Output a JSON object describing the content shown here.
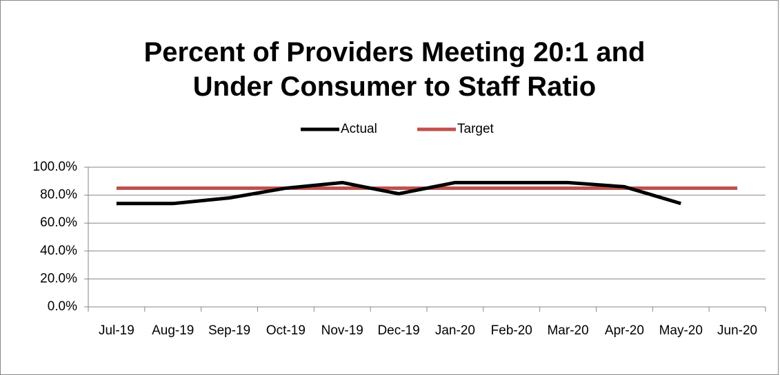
{
  "chart_data": {
    "type": "line",
    "title": "Percent of Providers Meeting 20:1 and Under Consumer to Staff Ratio",
    "categories": [
      "Jul-19",
      "Aug-19",
      "Sep-19",
      "Oct-19",
      "Nov-19",
      "Dec-19",
      "Jan-20",
      "Feb-20",
      "Mar-20",
      "Apr-20",
      "May-20",
      "Jun-20"
    ],
    "series": [
      {
        "name": "Actual",
        "color": "#000000",
        "values": [
          74,
          74,
          78,
          85,
          89,
          81,
          89,
          89,
          89,
          86,
          74,
          null
        ]
      },
      {
        "name": "Target",
        "color": "#c0504d",
        "values": [
          85,
          85,
          85,
          85,
          85,
          85,
          85,
          85,
          85,
          85,
          85,
          85
        ]
      }
    ],
    "ylim": [
      0,
      100
    ],
    "yticks": [
      {
        "value": 0,
        "label": "0.0%"
      },
      {
        "value": 20,
        "label": "20.0%"
      },
      {
        "value": 40,
        "label": "40.0%"
      },
      {
        "value": 60,
        "label": "60.0%"
      },
      {
        "value": 80,
        "label": "80.0%"
      },
      {
        "value": 100,
        "label": "100.0%"
      }
    ],
    "grid": true,
    "legend": "top"
  }
}
